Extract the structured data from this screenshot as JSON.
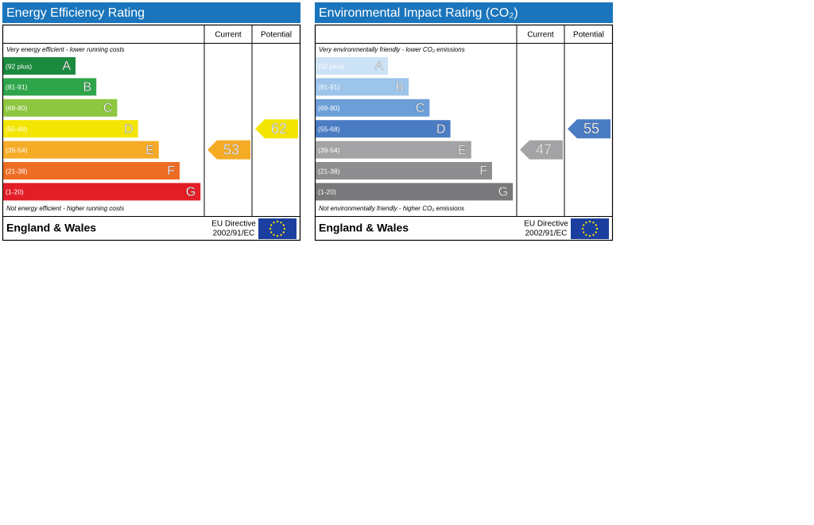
{
  "panels": [
    {
      "title": "Energy Efficiency Rating",
      "columns": [
        "Current",
        "Potential"
      ],
      "top_note": "Very energy efficient - lower running costs",
      "bottom_note": "Not energy efficient - higher running costs",
      "bands": [
        {
          "range": "(92 plus)",
          "letter": "A",
          "color": "#1b8a3e"
        },
        {
          "range": "(81-91)",
          "letter": "B",
          "color": "#2ea54a"
        },
        {
          "range": "(69-80)",
          "letter": "C",
          "color": "#8dc63f"
        },
        {
          "range": "(55-68)",
          "letter": "D",
          "color": "#f4e500"
        },
        {
          "range": "(39-54)",
          "letter": "E",
          "color": "#f6ab26"
        },
        {
          "range": "(21-38)",
          "letter": "F",
          "color": "#ee6d25"
        },
        {
          "range": "(1-20)",
          "letter": "G",
          "color": "#e31e26"
        }
      ],
      "current": 53,
      "potential": 62,
      "region": "England & Wales",
      "directive": [
        "EU Directive",
        "2002/91/EC"
      ]
    },
    {
      "title": "Environmental Impact Rating (CO₂)",
      "columns": [
        "Current",
        "Potential"
      ],
      "top_note": "Very environmentally friendly - lower CO₂ emissions",
      "bottom_note": "Not environmentally friendly - higher CO₂ emissions",
      "bands": [
        {
          "range": "(92 plus)",
          "letter": "A",
          "color": "#cce2f6"
        },
        {
          "range": "(81-91)",
          "letter": "B",
          "color": "#9dc4ea"
        },
        {
          "range": "(69-80)",
          "letter": "C",
          "color": "#6c9fd8"
        },
        {
          "range": "(55-68)",
          "letter": "D",
          "color": "#4a7cc3"
        },
        {
          "range": "(39-54)",
          "letter": "E",
          "color": "#a3a3a5"
        },
        {
          "range": "(21-38)",
          "letter": "F",
          "color": "#8e8e90"
        },
        {
          "range": "(1-20)",
          "letter": "G",
          "color": "#79797b"
        }
      ],
      "current": 47,
      "potential": 55,
      "region": "England & Wales",
      "directive": [
        "EU Directive",
        "2002/91/EC"
      ]
    }
  ]
}
